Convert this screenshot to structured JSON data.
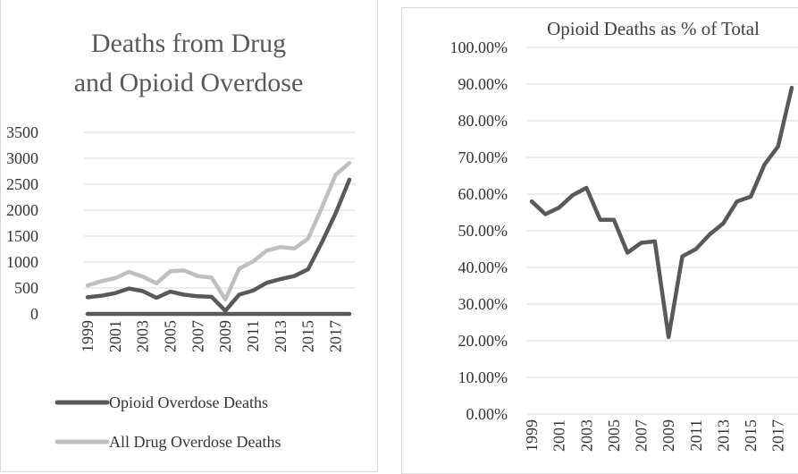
{
  "chart_data": [
    {
      "type": "line",
      "title_lines": [
        "Deaths from Drug",
        "and Opioid Overdose"
      ],
      "xlabel": "",
      "ylabel": "",
      "x": [
        "1999",
        "2000",
        "2001",
        "2002",
        "2003",
        "2004",
        "2005",
        "2006",
        "2007",
        "2008",
        "2009",
        "2010",
        "2011",
        "2012",
        "2013",
        "2014",
        "2015",
        "2016",
        "2017",
        "2018"
      ],
      "x_tick_labels": [
        "1999",
        "2001",
        "2003",
        "2005",
        "2007",
        "2009",
        "2011",
        "2013",
        "2015",
        "2017"
      ],
      "y_tick_labels": [
        "0",
        "500",
        "1000",
        "1500",
        "2000",
        "2500",
        "3000",
        "3500"
      ],
      "ylim": [
        0,
        3500
      ],
      "grid": true,
      "legend_position": "bottom",
      "series": [
        {
          "name": "Opioid Overdose Deaths",
          "color": "#595959",
          "values": [
            320,
            350,
            400,
            490,
            440,
            310,
            430,
            370,
            340,
            330,
            60,
            370,
            450,
            600,
            670,
            730,
            860,
            1380,
            1940,
            2590
          ]
        },
        {
          "name": "All Drug Overdose Deaths",
          "color": "#bfbfbf",
          "values": [
            550,
            630,
            690,
            810,
            720,
            590,
            820,
            840,
            730,
            700,
            280,
            870,
            1010,
            1220,
            1290,
            1260,
            1450,
            2050,
            2680,
            2910
          ]
        },
        {
          "name": "",
          "color": "#595959",
          "values": [
            0,
            0,
            0,
            0,
            0,
            0,
            0,
            0,
            0,
            0,
            0,
            0,
            0,
            0,
            0,
            0,
            0,
            0,
            0,
            0
          ]
        }
      ]
    },
    {
      "type": "line",
      "title": "Opioid Deaths as % of Total",
      "xlabel": "",
      "ylabel": "",
      "x": [
        "1999",
        "2000",
        "2001",
        "2002",
        "2003",
        "2004",
        "2005",
        "2006",
        "2007",
        "2008",
        "2009",
        "2010",
        "2011",
        "2012",
        "2013",
        "2014",
        "2015",
        "2016",
        "2017",
        "2018"
      ],
      "x_tick_labels": [
        "1999",
        "2001",
        "2003",
        "2005",
        "2007",
        "2009",
        "2011",
        "2013",
        "2015",
        "2017"
      ],
      "y_tick_labels": [
        "0.00%",
        "10.00%",
        "20.00%",
        "30.00%",
        "40.00%",
        "50.00%",
        "60.00%",
        "70.00%",
        "80.00%",
        "90.00%",
        "100.00%"
      ],
      "ylim": [
        0,
        1
      ],
      "grid": true,
      "series": [
        {
          "color": "#595959",
          "values": [
            0.58,
            0.545,
            0.563,
            0.597,
            0.617,
            0.53,
            0.53,
            0.44,
            0.467,
            0.471,
            0.21,
            0.43,
            0.45,
            0.49,
            0.52,
            0.58,
            0.593,
            0.68,
            0.73,
            0.89
          ]
        }
      ]
    }
  ]
}
